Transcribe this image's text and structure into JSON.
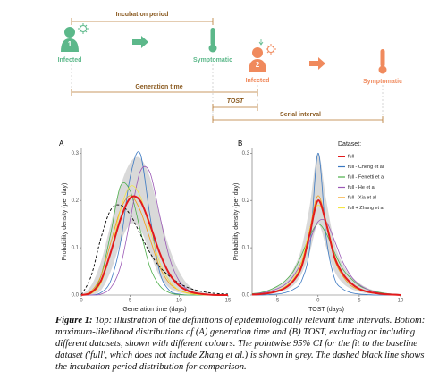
{
  "diagram": {
    "incubation_period": "Incubation period",
    "person_1": "1",
    "infected_1": "Infected",
    "symptomatic_1": "Symptomatic",
    "person_2": "2",
    "infected_2": "Infected",
    "symptomatic_2": "Symptomatic",
    "generation_time": "Generation time",
    "tost": "TOST",
    "serial_interval": "Serial interval"
  },
  "chart_data": [
    {
      "type": "line",
      "panel": "A",
      "xlabel": "Generation time (days)",
      "ylabel": "Probability density (per day)",
      "xlim": [
        0,
        15
      ],
      "ylim": [
        0,
        0.31
      ],
      "xticks": [
        0,
        5,
        10,
        15
      ],
      "yticks": [
        {
          "value": 0,
          "label": "0.0"
        },
        0.1,
        0.2,
        0.3
      ],
      "x": [
        0,
        1,
        2,
        3,
        4,
        5,
        6,
        7,
        8,
        9,
        10,
        11,
        12,
        13,
        14,
        15
      ],
      "band": {
        "color": "#d9d9d9",
        "lower": [
          0,
          0,
          0.01,
          0.05,
          0.11,
          0.15,
          0.14,
          0.09,
          0.04,
          0.015,
          0.005,
          0.002,
          0,
          0,
          0,
          0
        ],
        "upper": [
          0,
          0.02,
          0.07,
          0.15,
          0.23,
          0.28,
          0.29,
          0.25,
          0.17,
          0.1,
          0.05,
          0.02,
          0.008,
          0.003,
          0.001,
          0
        ]
      },
      "series": [
        {
          "color": "#000000",
          "dash": true,
          "linewidth": 0.9,
          "values": [
            0,
            0.04,
            0.12,
            0.18,
            0.19,
            0.17,
            0.13,
            0.09,
            0.06,
            0.04,
            0.025,
            0.015,
            0.009,
            0.005,
            0.003,
            0.002
          ]
        },
        {
          "color": "#3a78c2",
          "linewidth": 0.8,
          "values": [
            0,
            0,
            0.005,
            0.03,
            0.11,
            0.25,
            0.3,
            0.17,
            0.05,
            0.01,
            0.002,
            0,
            0,
            0,
            0,
            0
          ]
        },
        {
          "color": "#4daf4a",
          "linewidth": 0.8,
          "values": [
            0,
            0.005,
            0.04,
            0.13,
            0.23,
            0.22,
            0.14,
            0.06,
            0.02,
            0.005,
            0.001,
            0,
            0,
            0,
            0,
            0
          ]
        },
        {
          "color": "#9b59b6",
          "linewidth": 0.8,
          "values": [
            0,
            0,
            0.002,
            0.015,
            0.06,
            0.16,
            0.26,
            0.26,
            0.17,
            0.08,
            0.03,
            0.01,
            0.003,
            0.001,
            0,
            0
          ]
        },
        {
          "color": "#f39c12",
          "linewidth": 0.8,
          "values": [
            0,
            0.008,
            0.04,
            0.11,
            0.18,
            0.21,
            0.18,
            0.12,
            0.06,
            0.025,
            0.01,
            0.004,
            0.001,
            0,
            0,
            0
          ]
        },
        {
          "color": "#f5e642",
          "linewidth": 0.8,
          "values": [
            0,
            0.003,
            0.025,
            0.09,
            0.18,
            0.23,
            0.21,
            0.14,
            0.07,
            0.03,
            0.01,
            0.003,
            0.001,
            0,
            0,
            0
          ]
        },
        {
          "color": "#e31a1c",
          "linewidth": 2,
          "values": [
            0,
            0.005,
            0.03,
            0.09,
            0.16,
            0.205,
            0.2,
            0.15,
            0.09,
            0.045,
            0.02,
            0.008,
            0.003,
            0.001,
            0,
            0
          ]
        }
      ]
    },
    {
      "type": "line",
      "panel": "B",
      "xlabel": "TOST (days)",
      "ylabel": "Probability density (per day)",
      "xlim": [
        -8,
        10
      ],
      "ylim": [
        0,
        0.31
      ],
      "xticks": [
        -5,
        0,
        5,
        10
      ],
      "yticks": [
        {
          "value": 0,
          "label": "0.0"
        },
        0.1,
        0.2,
        0.3
      ],
      "x": [
        -8,
        -7,
        -6,
        -5,
        -4,
        -3,
        -2,
        -1,
        0,
        1,
        2,
        3,
        4,
        5,
        6,
        7,
        8,
        9,
        10
      ],
      "band": {
        "color": "#d9d9d9",
        "lower": [
          0,
          0.001,
          0.002,
          0.005,
          0.01,
          0.02,
          0.045,
          0.09,
          0.15,
          0.1,
          0.05,
          0.025,
          0.013,
          0.007,
          0.003,
          0.002,
          0.001,
          0,
          0
        ],
        "upper": [
          0.003,
          0.005,
          0.01,
          0.018,
          0.03,
          0.055,
          0.1,
          0.19,
          0.3,
          0.2,
          0.11,
          0.065,
          0.04,
          0.025,
          0.015,
          0.009,
          0.005,
          0.003,
          0.002
        ]
      },
      "legend": {
        "title": "Dataset:",
        "position": "top-right"
      },
      "series": [
        {
          "name": "full",
          "color": "#e31a1c",
          "linewidth": 2,
          "values": [
            0.001,
            0.002,
            0.004,
            0.008,
            0.015,
            0.03,
            0.06,
            0.13,
            0.2,
            0.15,
            0.08,
            0.045,
            0.025,
            0.013,
            0.007,
            0.004,
            0.002,
            0.001,
            0
          ]
        },
        {
          "name": "full - Cheng et al",
          "color": "#3a78c2",
          "linewidth": 0.8,
          "values": [
            0,
            0,
            0.001,
            0.002,
            0.005,
            0.012,
            0.03,
            0.1,
            0.3,
            0.12,
            0.035,
            0.013,
            0.005,
            0.002,
            0.001,
            0,
            0,
            0,
            0
          ]
        },
        {
          "name": "full - Ferretti et al",
          "color": "#4daf4a",
          "linewidth": 0.8,
          "values": [
            0.003,
            0.005,
            0.01,
            0.018,
            0.03,
            0.05,
            0.085,
            0.125,
            0.15,
            0.13,
            0.09,
            0.055,
            0.035,
            0.02,
            0.012,
            0.007,
            0.004,
            0.002,
            0.001
          ]
        },
        {
          "name": "full - He et al",
          "color": "#9b59b6",
          "linewidth": 0.8,
          "values": [
            0.002,
            0.004,
            0.007,
            0.013,
            0.022,
            0.04,
            0.07,
            0.115,
            0.155,
            0.155,
            0.115,
            0.07,
            0.04,
            0.022,
            0.012,
            0.006,
            0.003,
            0.002,
            0.001
          ]
        },
        {
          "name": "full - Xia et al",
          "color": "#f39c12",
          "linewidth": 0.8,
          "values": [
            0.001,
            0.002,
            0.004,
            0.008,
            0.016,
            0.032,
            0.065,
            0.14,
            0.21,
            0.15,
            0.075,
            0.04,
            0.02,
            0.011,
            0.006,
            0.003,
            0.002,
            0.001,
            0
          ]
        },
        {
          "name": "full + Zhang et al",
          "color": "#f5e642",
          "linewidth": 0.8,
          "values": [
            0.001,
            0.002,
            0.004,
            0.009,
            0.018,
            0.035,
            0.07,
            0.14,
            0.19,
            0.155,
            0.085,
            0.045,
            0.025,
            0.013,
            0.007,
            0.004,
            0.002,
            0.001,
            0
          ]
        }
      ]
    }
  ],
  "caption": {
    "label": "Figure 1:",
    "text": "Top: illustration of the definitions of epidemiologically relevant time intervals. Bottom: maximum-likelihood distributions of (A) generation time and (B) TOST, excluding or including different datasets, shown with different colours. The pointwise 95% CI for the fit to the baseline dataset ('full', which does not include Zhang et al.) is shown in grey. The dashed black line shows the incubation period distribution for comparison."
  }
}
